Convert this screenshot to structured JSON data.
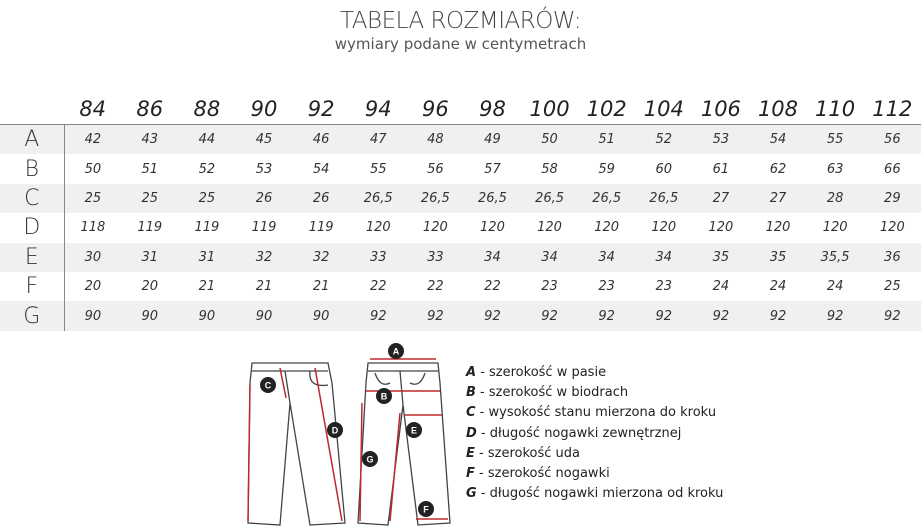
{
  "header": {
    "title": "TABELA ROZMIARÓW:",
    "subtitle": "wymiary podane w centymetrach"
  },
  "table": {
    "columns": [
      "84",
      "86",
      "88",
      "90",
      "92",
      "94",
      "96",
      "98",
      "100",
      "102",
      "104",
      "106",
      "108",
      "110",
      "112"
    ],
    "rows": [
      {
        "label": "A",
        "values": [
          "42",
          "43",
          "44",
          "45",
          "46",
          "47",
          "48",
          "49",
          "50",
          "51",
          "52",
          "53",
          "54",
          "55",
          "56"
        ]
      },
      {
        "label": "B",
        "values": [
          "50",
          "51",
          "52",
          "53",
          "54",
          "55",
          "56",
          "57",
          "58",
          "59",
          "60",
          "61",
          "62",
          "63",
          "66"
        ]
      },
      {
        "label": "C",
        "values": [
          "25",
          "25",
          "25",
          "26",
          "26",
          "26,5",
          "26,5",
          "26,5",
          "26,5",
          "26,5",
          "26,5",
          "27",
          "27",
          "28",
          "29"
        ]
      },
      {
        "label": "D",
        "values": [
          "118",
          "119",
          "119",
          "119",
          "119",
          "120",
          "120",
          "120",
          "120",
          "120",
          "120",
          "120",
          "120",
          "120",
          "120"
        ]
      },
      {
        "label": "E",
        "values": [
          "30",
          "31",
          "31",
          "32",
          "32",
          "33",
          "33",
          "34",
          "34",
          "34",
          "34",
          "35",
          "35",
          "35,5",
          "36"
        ]
      },
      {
        "label": "F",
        "values": [
          "20",
          "20",
          "21",
          "21",
          "21",
          "22",
          "22",
          "22",
          "23",
          "23",
          "23",
          "24",
          "24",
          "24",
          "25"
        ]
      },
      {
        "label": "G",
        "values": [
          "90",
          "90",
          "90",
          "90",
          "90",
          "92",
          "92",
          "92",
          "92",
          "92",
          "92",
          "92",
          "92",
          "92",
          "92"
        ]
      }
    ]
  },
  "legend": [
    {
      "key": "A",
      "text": " - szerokość w pasie"
    },
    {
      "key": "B",
      "text": " - szerokość w biodrach"
    },
    {
      "key": "C",
      "text": " - wysokość stanu mierzona do kroku"
    },
    {
      "key": "D",
      "text": " - długość nogawki zewnętrznej"
    },
    {
      "key": "E",
      "text": " - szerokość uda"
    },
    {
      "key": "F",
      "text": " - szerokość nogawki"
    },
    {
      "key": "G",
      "text": " - długość nogawki mierzona od kroku"
    }
  ],
  "colors": {
    "accent": "#c0282d",
    "row_shade": "#f0f0f0"
  },
  "figure_markers": {
    "C": "C",
    "D": "D",
    "A": "A",
    "B": "B",
    "E": "E",
    "G": "G",
    "F": "F"
  }
}
